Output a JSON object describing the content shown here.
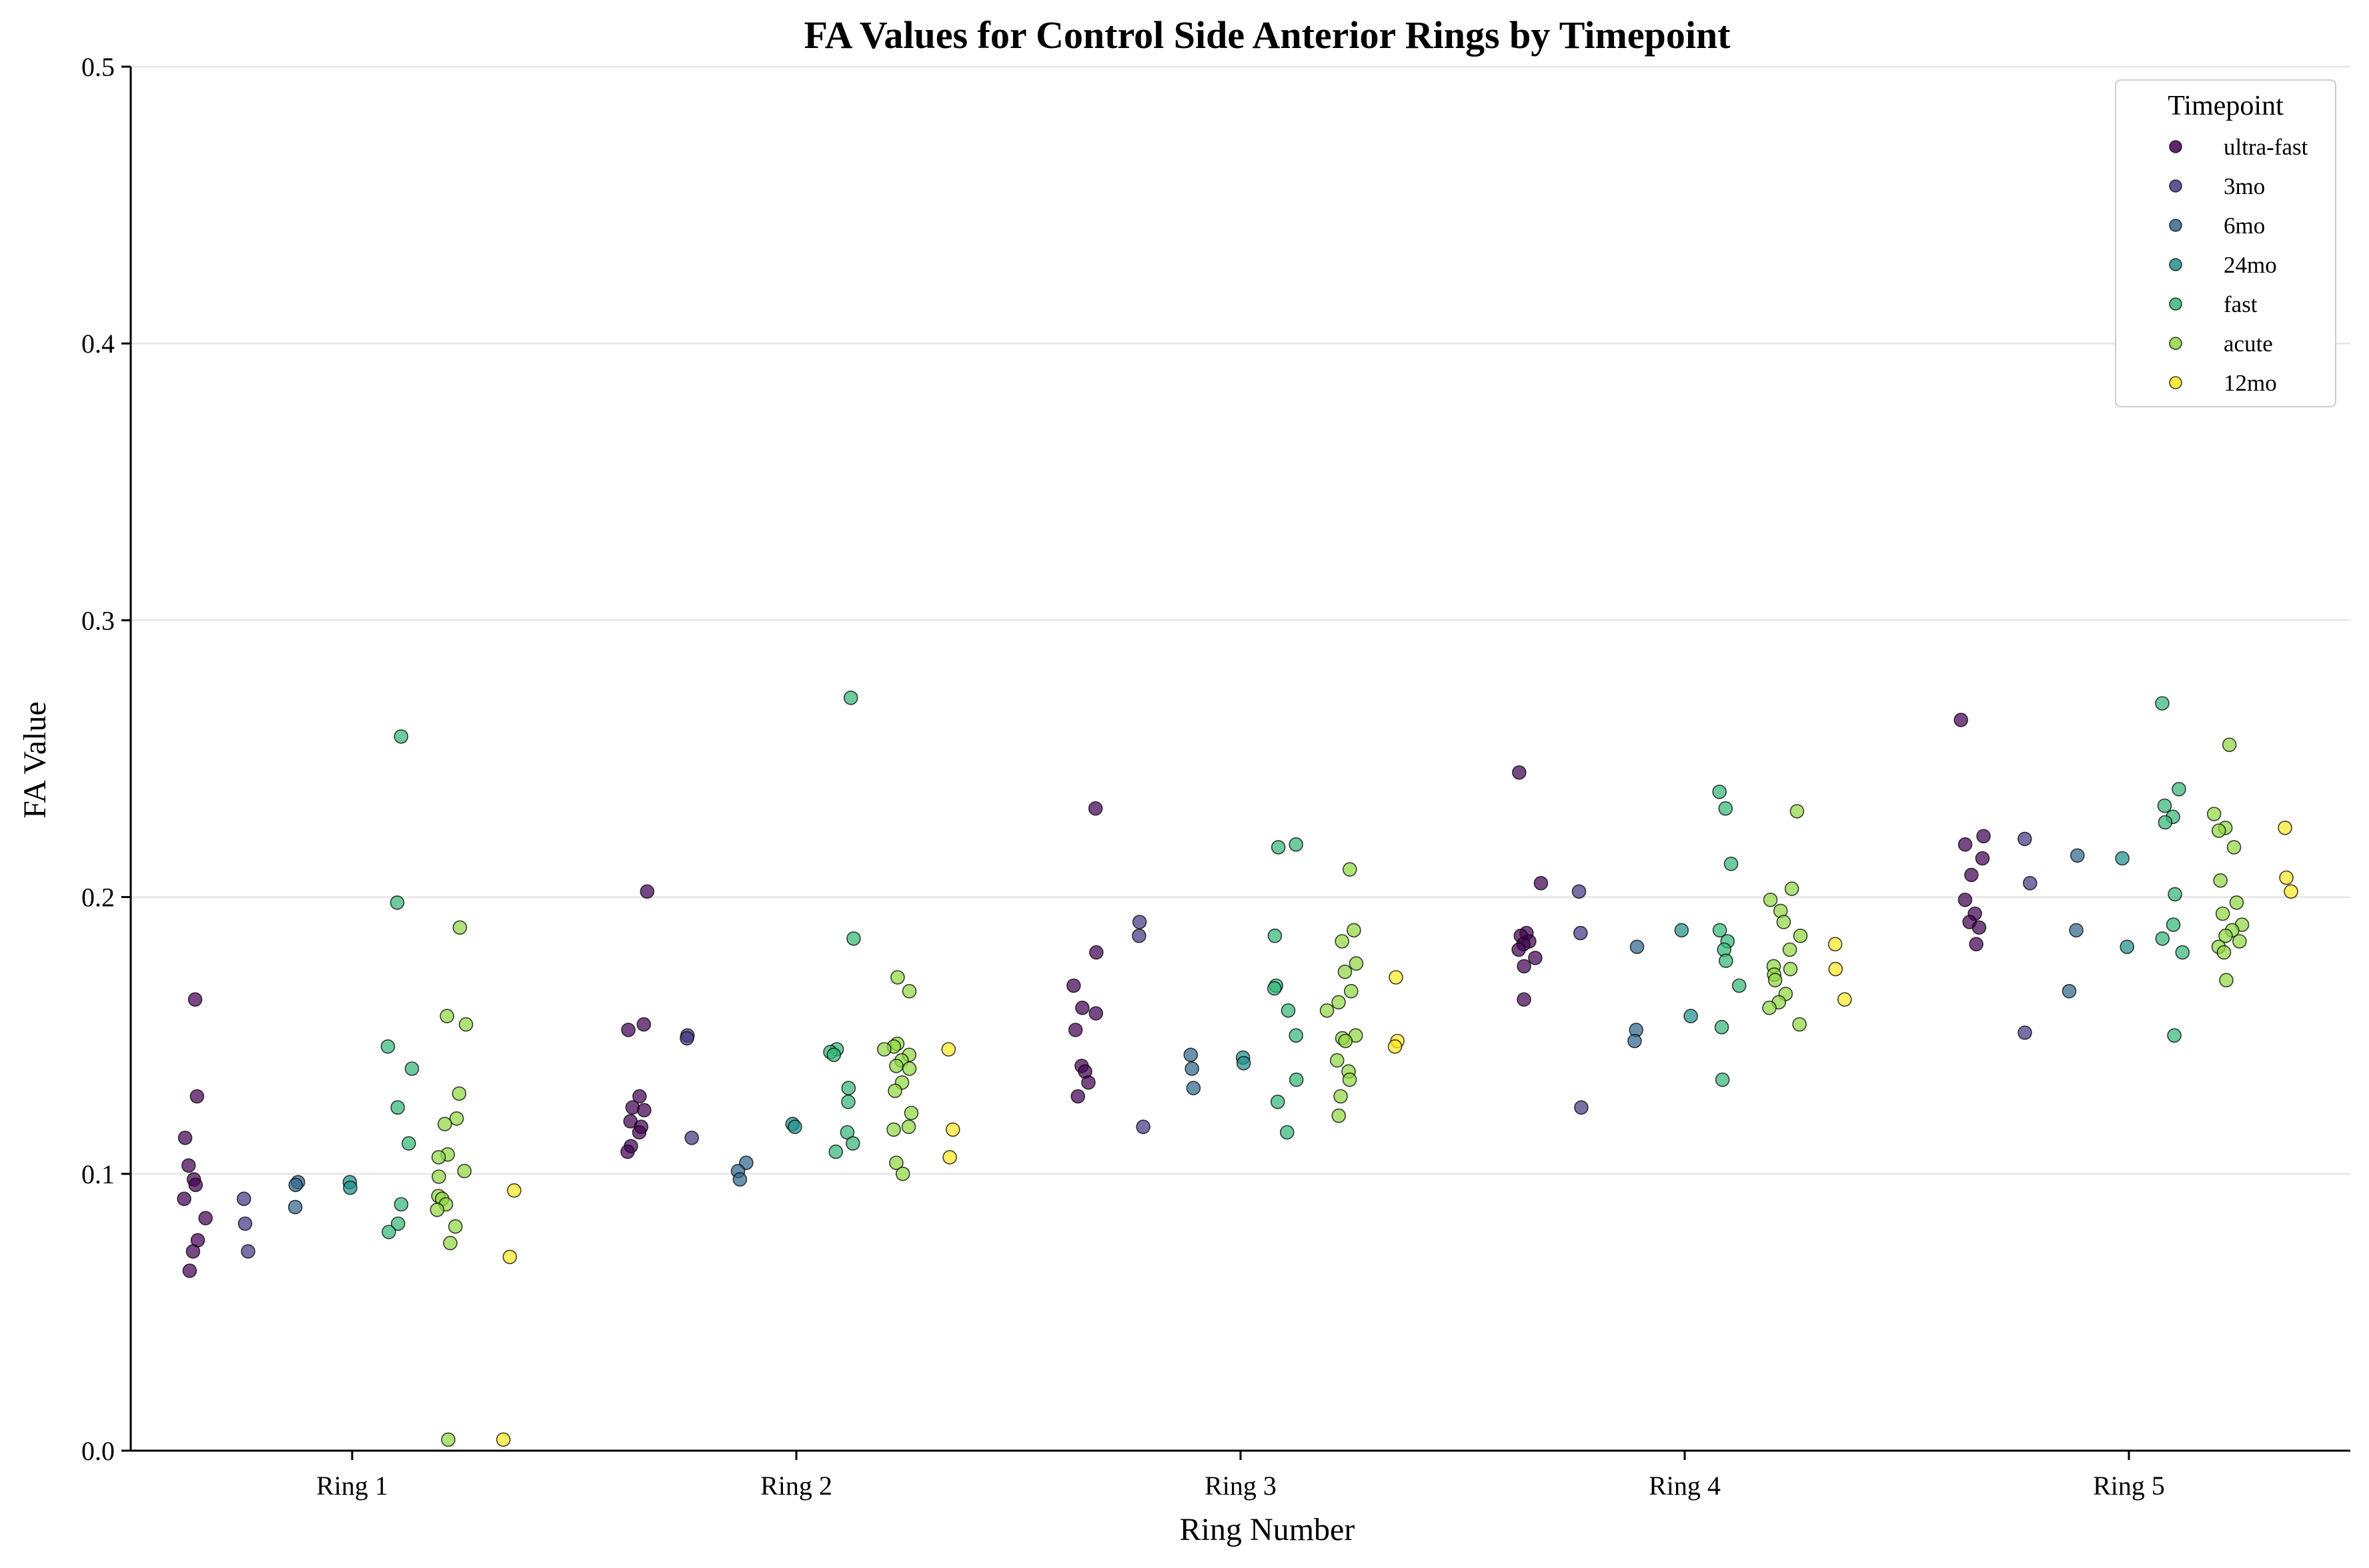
{
  "chart_data": {
    "type": "scatter",
    "title": "FA Values for Control Side Anterior Rings by Timepoint",
    "xlabel": "Ring Number",
    "ylabel": "FA Value",
    "categories": [
      "Ring 1",
      "Ring 2",
      "Ring 3",
      "Ring 4",
      "Ring 5"
    ],
    "ylim": [
      0,
      0.5
    ],
    "yticks": [
      "0.0",
      "0.1",
      "0.2",
      "0.3",
      "0.4",
      "0.5"
    ],
    "grid": "horizontal",
    "legend": {
      "title": "Timepoint",
      "placement": "top-right"
    },
    "series": [
      {
        "name": "ultra-fast",
        "color": "#440154",
        "points": [
          [
            1,
            0.163
          ],
          [
            1,
            0.128
          ],
          [
            1,
            0.113
          ],
          [
            1,
            0.103
          ],
          [
            1,
            0.098
          ],
          [
            1,
            0.096
          ],
          [
            1,
            0.091
          ],
          [
            1,
            0.084
          ],
          [
            1,
            0.076
          ],
          [
            1,
            0.072
          ],
          [
            1,
            0.065
          ],
          [
            2,
            0.202
          ],
          [
            2,
            0.154
          ],
          [
            2,
            0.152
          ],
          [
            2,
            0.128
          ],
          [
            2,
            0.124
          ],
          [
            2,
            0.123
          ],
          [
            2,
            0.119
          ],
          [
            2,
            0.117
          ],
          [
            2,
            0.115
          ],
          [
            2,
            0.11
          ],
          [
            2,
            0.108
          ],
          [
            3,
            0.232
          ],
          [
            3,
            0.18
          ],
          [
            3,
            0.168
          ],
          [
            3,
            0.16
          ],
          [
            3,
            0.158
          ],
          [
            3,
            0.152
          ],
          [
            3,
            0.139
          ],
          [
            3,
            0.137
          ],
          [
            3,
            0.133
          ],
          [
            3,
            0.128
          ],
          [
            4,
            0.245
          ],
          [
            4,
            0.205
          ],
          [
            4,
            0.187
          ],
          [
            4,
            0.186
          ],
          [
            4,
            0.184
          ],
          [
            4,
            0.183
          ],
          [
            4,
            0.181
          ],
          [
            4,
            0.178
          ],
          [
            4,
            0.175
          ],
          [
            4,
            0.163
          ],
          [
            5,
            0.264
          ],
          [
            5,
            0.222
          ],
          [
            5,
            0.219
          ],
          [
            5,
            0.214
          ],
          [
            5,
            0.208
          ],
          [
            5,
            0.199
          ],
          [
            5,
            0.194
          ],
          [
            5,
            0.191
          ],
          [
            5,
            0.189
          ],
          [
            5,
            0.183
          ]
        ]
      },
      {
        "name": "3mo",
        "color": "#443983",
        "points": [
          [
            1,
            0.091
          ],
          [
            1,
            0.082
          ],
          [
            1,
            0.072
          ],
          [
            2,
            0.15
          ],
          [
            2,
            0.149
          ],
          [
            2,
            0.113
          ],
          [
            3,
            0.191
          ],
          [
            3,
            0.186
          ],
          [
            3,
            0.117
          ],
          [
            4,
            0.202
          ],
          [
            4,
            0.187
          ],
          [
            4,
            0.124
          ],
          [
            5,
            0.221
          ],
          [
            5,
            0.205
          ],
          [
            5,
            0.151
          ]
        ]
      },
      {
        "name": "6mo",
        "color": "#31688e",
        "points": [
          [
            1,
            0.097
          ],
          [
            1,
            0.096
          ],
          [
            1,
            0.088
          ],
          [
            2,
            0.104
          ],
          [
            2,
            0.101
          ],
          [
            2,
            0.098
          ],
          [
            3,
            0.143
          ],
          [
            3,
            0.138
          ],
          [
            3,
            0.131
          ],
          [
            4,
            0.182
          ],
          [
            4,
            0.152
          ],
          [
            4,
            0.148
          ],
          [
            5,
            0.215
          ],
          [
            5,
            0.188
          ],
          [
            5,
            0.166
          ]
        ]
      },
      {
        "name": "24mo",
        "color": "#21918c",
        "points": [
          [
            1,
            0.097
          ],
          [
            1,
            0.095
          ],
          [
            2,
            0.118
          ],
          [
            2,
            0.117
          ],
          [
            3,
            0.142
          ],
          [
            3,
            0.14
          ],
          [
            4,
            0.188
          ],
          [
            4,
            0.157
          ],
          [
            5,
            0.214
          ],
          [
            5,
            0.182
          ]
        ]
      },
      {
        "name": "fast",
        "color": "#35b779",
        "points": [
          [
            1,
            0.258
          ],
          [
            1,
            0.198
          ],
          [
            1,
            0.146
          ],
          [
            1,
            0.138
          ],
          [
            1,
            0.124
          ],
          [
            1,
            0.111
          ],
          [
            1,
            0.089
          ],
          [
            1,
            0.082
          ],
          [
            1,
            0.079
          ],
          [
            2,
            0.272
          ],
          [
            2,
            0.185
          ],
          [
            2,
            0.145
          ],
          [
            2,
            0.144
          ],
          [
            2,
            0.143
          ],
          [
            2,
            0.131
          ],
          [
            2,
            0.126
          ],
          [
            2,
            0.115
          ],
          [
            2,
            0.111
          ],
          [
            2,
            0.108
          ],
          [
            3,
            0.219
          ],
          [
            3,
            0.218
          ],
          [
            3,
            0.186
          ],
          [
            3,
            0.168
          ],
          [
            3,
            0.167
          ],
          [
            3,
            0.159
          ],
          [
            3,
            0.15
          ],
          [
            3,
            0.134
          ],
          [
            3,
            0.126
          ],
          [
            3,
            0.115
          ],
          [
            4,
            0.238
          ],
          [
            4,
            0.232
          ],
          [
            4,
            0.212
          ],
          [
            4,
            0.188
          ],
          [
            4,
            0.184
          ],
          [
            4,
            0.181
          ],
          [
            4,
            0.177
          ],
          [
            4,
            0.168
          ],
          [
            4,
            0.153
          ],
          [
            4,
            0.134
          ],
          [
            5,
            0.27
          ],
          [
            5,
            0.239
          ],
          [
            5,
            0.233
          ],
          [
            5,
            0.229
          ],
          [
            5,
            0.227
          ],
          [
            5,
            0.201
          ],
          [
            5,
            0.19
          ],
          [
            5,
            0.185
          ],
          [
            5,
            0.18
          ],
          [
            5,
            0.15
          ]
        ]
      },
      {
        "name": "acute",
        "color": "#90d743",
        "points": [
          [
            1,
            0.189
          ],
          [
            1,
            0.157
          ],
          [
            1,
            0.154
          ],
          [
            1,
            0.129
          ],
          [
            1,
            0.12
          ],
          [
            1,
            0.118
          ],
          [
            1,
            0.107
          ],
          [
            1,
            0.106
          ],
          [
            1,
            0.101
          ],
          [
            1,
            0.099
          ],
          [
            1,
            0.092
          ],
          [
            1,
            0.091
          ],
          [
            1,
            0.089
          ],
          [
            1,
            0.087
          ],
          [
            1,
            0.081
          ],
          [
            1,
            0.075
          ],
          [
            1,
            0.004
          ],
          [
            2,
            0.171
          ],
          [
            2,
            0.166
          ],
          [
            2,
            0.147
          ],
          [
            2,
            0.146
          ],
          [
            2,
            0.145
          ],
          [
            2,
            0.143
          ],
          [
            2,
            0.141
          ],
          [
            2,
            0.139
          ],
          [
            2,
            0.138
          ],
          [
            2,
            0.133
          ],
          [
            2,
            0.13
          ],
          [
            2,
            0.122
          ],
          [
            2,
            0.117
          ],
          [
            2,
            0.116
          ],
          [
            2,
            0.104
          ],
          [
            2,
            0.1
          ],
          [
            3,
            0.21
          ],
          [
            3,
            0.188
          ],
          [
            3,
            0.184
          ],
          [
            3,
            0.176
          ],
          [
            3,
            0.173
          ],
          [
            3,
            0.166
          ],
          [
            3,
            0.162
          ],
          [
            3,
            0.159
          ],
          [
            3,
            0.15
          ],
          [
            3,
            0.149
          ],
          [
            3,
            0.148
          ],
          [
            3,
            0.141
          ],
          [
            3,
            0.137
          ],
          [
            3,
            0.134
          ],
          [
            3,
            0.128
          ],
          [
            3,
            0.121
          ],
          [
            4,
            0.231
          ],
          [
            4,
            0.203
          ],
          [
            4,
            0.199
          ],
          [
            4,
            0.195
          ],
          [
            4,
            0.191
          ],
          [
            4,
            0.186
          ],
          [
            4,
            0.181
          ],
          [
            4,
            0.175
          ],
          [
            4,
            0.174
          ],
          [
            4,
            0.172
          ],
          [
            4,
            0.17
          ],
          [
            4,
            0.165
          ],
          [
            4,
            0.162
          ],
          [
            4,
            0.16
          ],
          [
            4,
            0.154
          ],
          [
            5,
            0.255
          ],
          [
            5,
            0.23
          ],
          [
            5,
            0.225
          ],
          [
            5,
            0.224
          ],
          [
            5,
            0.218
          ],
          [
            5,
            0.206
          ],
          [
            5,
            0.198
          ],
          [
            5,
            0.194
          ],
          [
            5,
            0.19
          ],
          [
            5,
            0.188
          ],
          [
            5,
            0.186
          ],
          [
            5,
            0.184
          ],
          [
            5,
            0.182
          ],
          [
            5,
            0.18
          ],
          [
            5,
            0.17
          ]
        ]
      },
      {
        "name": "12mo",
        "color": "#fde725",
        "points": [
          [
            1,
            0.094
          ],
          [
            1,
            0.07
          ],
          [
            1,
            0.004
          ],
          [
            2,
            0.145
          ],
          [
            2,
            0.116
          ],
          [
            2,
            0.106
          ],
          [
            3,
            0.171
          ],
          [
            3,
            0.148
          ],
          [
            3,
            0.146
          ],
          [
            4,
            0.183
          ],
          [
            4,
            0.174
          ],
          [
            4,
            0.163
          ],
          [
            5,
            0.225
          ],
          [
            5,
            0.207
          ],
          [
            5,
            0.202
          ]
        ]
      }
    ]
  }
}
